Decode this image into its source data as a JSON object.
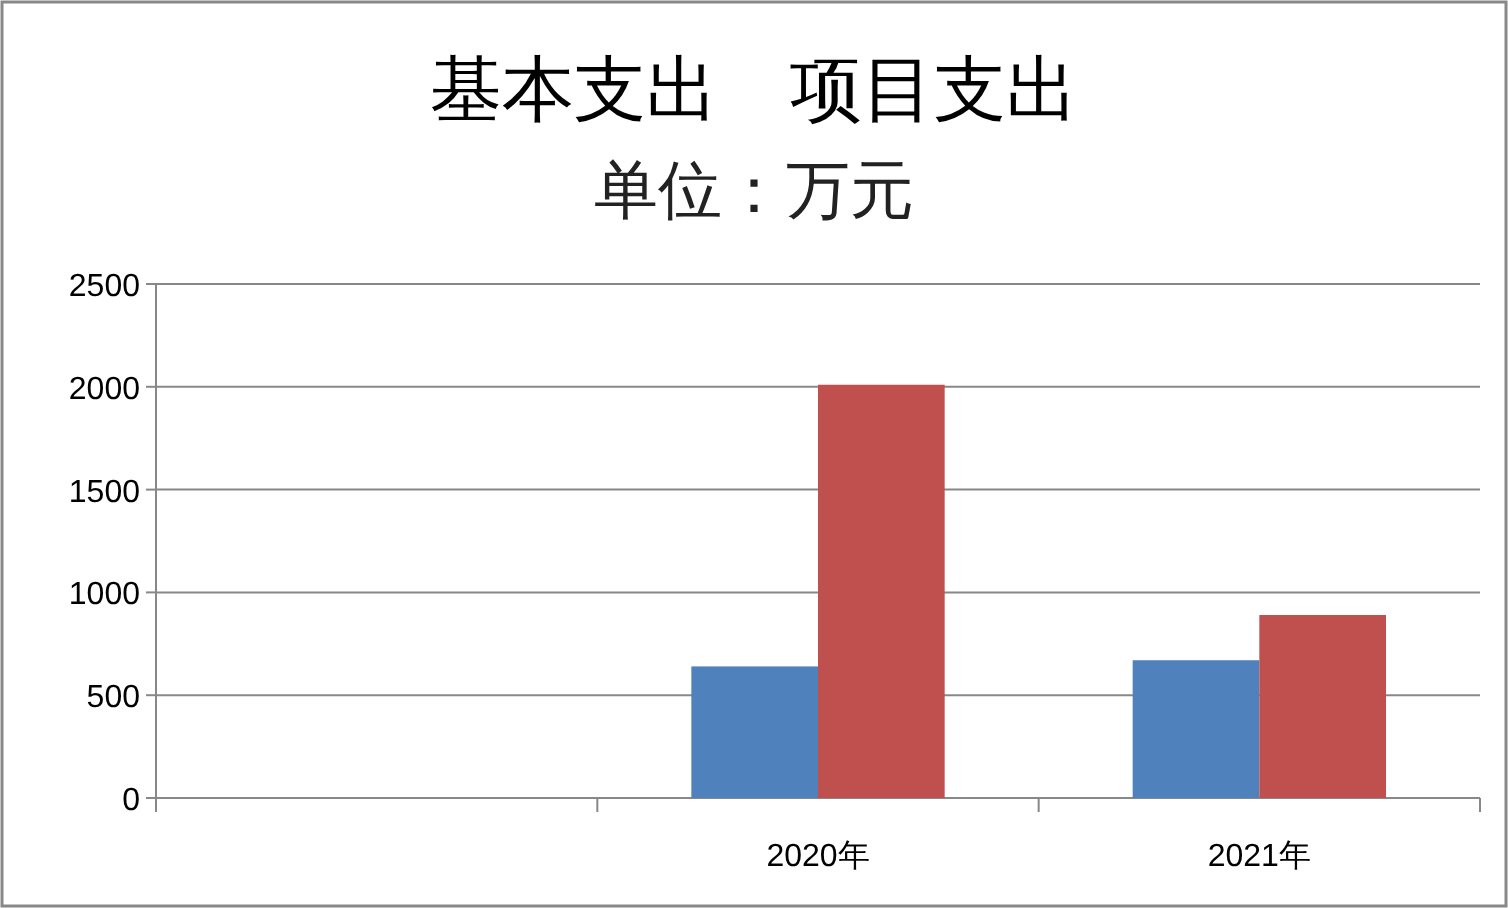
{
  "chart_data": {
    "type": "bar",
    "title": "基本支出　项目支出",
    "subtitle": "单位：万元",
    "categories": [
      null,
      "2020年",
      "2021年"
    ],
    "series": [
      {
        "color": "#4f81bd",
        "values": [
          null,
          640,
          670
        ]
      },
      {
        "color": "#c0504d",
        "values": [
          null,
          2010,
          890
        ]
      }
    ],
    "ylim": [
      0,
      2500
    ],
    "yticks": [
      0,
      500,
      1000,
      1500,
      2000,
      2500
    ],
    "grid": "y"
  }
}
